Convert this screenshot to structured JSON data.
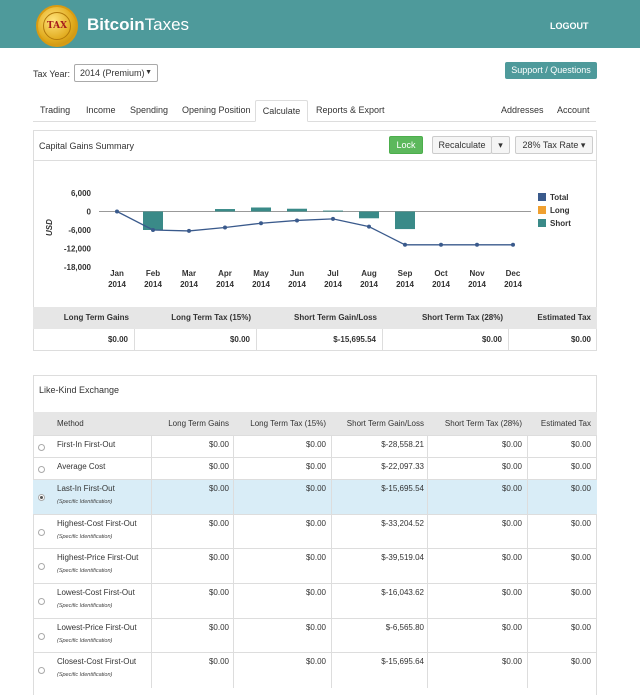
{
  "header": {
    "logo_text": "TAX",
    "brand_bold": "Bitcoin",
    "brand_rest": "Taxes",
    "logout": "LOGOUT"
  },
  "taxyear": {
    "label": "Tax Year:",
    "selected": "2014 (Premium)"
  },
  "support_button": "Support / Questions",
  "tabs": {
    "trading": "Trading",
    "income": "Income",
    "spending": "Spending",
    "opening": "Opening Position",
    "calculate": "Calculate",
    "reports": "Reports & Export",
    "addresses": "Addresses",
    "account": "Account"
  },
  "capital": {
    "title": "Capital Gains Summary",
    "lock": "Lock",
    "recalculate": "Recalculate",
    "taxrate": "28% Tax Rate"
  },
  "chart_data": {
    "type": "bar",
    "ylabel": "USD",
    "ylim": [
      -18000,
      6000
    ],
    "yticks": [
      "6,000",
      "0",
      "-6,000",
      "-12,000",
      "-18,000"
    ],
    "categories": [
      "Jan\n2014",
      "Feb\n2014",
      "Mar\n2014",
      "Apr\n2014",
      "May\n2014",
      "Jun\n2014",
      "Jul\n2014",
      "Aug\n2014",
      "Sep\n2014",
      "Oct\n2014",
      "Nov\n2014",
      "Dec\n2014"
    ],
    "month_labels": [
      "Jan",
      "Feb",
      "Mar",
      "Apr",
      "May",
      "Jun",
      "Jul",
      "Aug",
      "Sep",
      "Oct",
      "Nov",
      "Dec"
    ],
    "year_label": "2014",
    "series": [
      {
        "name": "Total",
        "type": "line",
        "color": "#3a5a8c",
        "values": [
          0,
          -6000,
          -6300,
          -5200,
          -3800,
          -2900,
          -2400,
          -4900,
          -10800,
          -10800,
          -10800,
          -10800
        ]
      },
      {
        "name": "Long",
        "type": "bar",
        "color": "#f0a030",
        "values": [
          0,
          0,
          0,
          0,
          0,
          0,
          0,
          0,
          0,
          0,
          0,
          0
        ]
      },
      {
        "name": "Short",
        "type": "bar",
        "color": "#3a8a88",
        "values": [
          0,
          -6000,
          0,
          800,
          1300,
          900,
          300,
          -2200,
          -5700,
          0,
          0,
          0
        ]
      }
    ],
    "legend_position": "right"
  },
  "summary": {
    "headers": [
      "Long Term Gains",
      "Long Term Tax (15%)",
      "Short Term Gain/Loss",
      "Short Term Tax (28%)",
      "Estimated Tax"
    ],
    "values": [
      "$0.00",
      "$0.00",
      "$-15,695.54",
      "$0.00",
      "$0.00"
    ]
  },
  "likekind": {
    "title": "Like-Kind Exchange",
    "headers": [
      "Method",
      "Long Term Gains",
      "Long Term Tax (15%)",
      "Short Term Gain/Loss",
      "Short Term Tax (28%)",
      "Estimated Tax"
    ],
    "rows": [
      {
        "method": "First-In First-Out",
        "sub": "",
        "ltg": "$0.00",
        "ltt": "$0.00",
        "stg": "$-28,558.21",
        "stt": "$0.00",
        "est": "$0.00"
      },
      {
        "method": "Average Cost",
        "sub": "",
        "ltg": "$0.00",
        "ltt": "$0.00",
        "stg": "$-22,097.33",
        "stt": "$0.00",
        "est": "$0.00"
      },
      {
        "method": "Last-In First-Out",
        "sub": "(Specific Identification)",
        "ltg": "$0.00",
        "ltt": "$0.00",
        "stg": "$-15,695.54",
        "stt": "$0.00",
        "est": "$0.00"
      },
      {
        "method": "Highest-Cost First-Out",
        "sub": "(Specific Identification)",
        "ltg": "$0.00",
        "ltt": "$0.00",
        "stg": "$-33,204.52",
        "stt": "$0.00",
        "est": "$0.00"
      },
      {
        "method": "Highest-Price First-Out",
        "sub": "(Specific Identification)",
        "ltg": "$0.00",
        "ltt": "$0.00",
        "stg": "$-39,519.04",
        "stt": "$0.00",
        "est": "$0.00"
      },
      {
        "method": "Lowest-Cost First-Out",
        "sub": "(Specific Identification)",
        "ltg": "$0.00",
        "ltt": "$0.00",
        "stg": "$-16,043.62",
        "stt": "$0.00",
        "est": "$0.00"
      },
      {
        "method": "Lowest-Price First-Out",
        "sub": "(Specific Identification)",
        "ltg": "$0.00",
        "ltt": "$0.00",
        "stg": "$-6,565.80",
        "stt": "$0.00",
        "est": "$0.00"
      },
      {
        "method": "Closest-Cost First-Out",
        "sub": "(Specific Identification)",
        "ltg": "$0.00",
        "ltt": "$0.00",
        "stg": "$-15,695.64",
        "stt": "$0.00",
        "est": "$0.00"
      }
    ],
    "selected_index": 2
  }
}
